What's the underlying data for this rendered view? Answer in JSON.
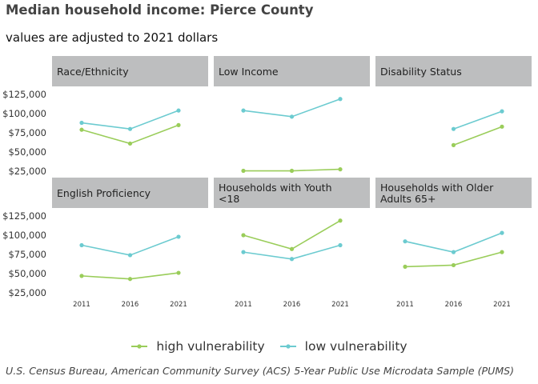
{
  "title": "Median household income: Pierce County",
  "subtitle": "values are adjusted to 2021 dollars",
  "caption": "U.S. Census Bureau, American Community Survey (ACS) 5-Year Public Use Microdata Sample (PUMS)",
  "legend": [
    "high vulnerability",
    "low vulnerability"
  ],
  "colors": {
    "high vulnerability": "#9acd5a",
    "low vulnerability": "#6ccbd0",
    "strip": "#bdbebf"
  },
  "chart_data": {
    "type": "line",
    "ylim": [
      25000,
      125000
    ],
    "ytick_labels": [
      "$125,000",
      "$100,000",
      "$75,000",
      "$50,000",
      "$25,000"
    ],
    "ytick_values": [
      125000,
      100000,
      75000,
      50000,
      25000
    ],
    "x": [
      "2011",
      "2016",
      "2021"
    ],
    "panels": [
      {
        "label": "Race/Ethnicity",
        "series": [
          {
            "name": "high vulnerability",
            "values": [
              79000,
              61000,
              85000
            ]
          },
          {
            "name": "low vulnerability",
            "values": [
              88000,
              80000,
              104000
            ]
          }
        ]
      },
      {
        "label": "Low Income",
        "series": [
          {
            "name": "high vulnerability",
            "values": [
              25500,
              25500,
              27500
            ]
          },
          {
            "name": "low vulnerability",
            "values": [
              104000,
              96000,
              119000
            ]
          }
        ]
      },
      {
        "label": "Disability Status",
        "series": [
          {
            "name": "high vulnerability",
            "values": [
              null,
              59000,
              83000
            ]
          },
          {
            "name": "low vulnerability",
            "values": [
              null,
              80000,
              103000
            ]
          }
        ]
      },
      {
        "label": "English Proficiency",
        "series": [
          {
            "name": "high vulnerability",
            "values": [
              47000,
              43000,
              51000
            ]
          },
          {
            "name": "low vulnerability",
            "values": [
              87000,
              74000,
              98000
            ]
          }
        ]
      },
      {
        "label": "Households with Youth <18",
        "series": [
          {
            "name": "high vulnerability",
            "values": [
              100000,
              82000,
              119000
            ]
          },
          {
            "name": "low vulnerability",
            "values": [
              78000,
              69000,
              87000
            ]
          }
        ]
      },
      {
        "label": "Households with Older Adults 65+",
        "series": [
          {
            "name": "high vulnerability",
            "values": [
              59000,
              61000,
              78000
            ]
          },
          {
            "name": "low vulnerability",
            "values": [
              92000,
              78000,
              103000
            ]
          }
        ]
      }
    ]
  }
}
